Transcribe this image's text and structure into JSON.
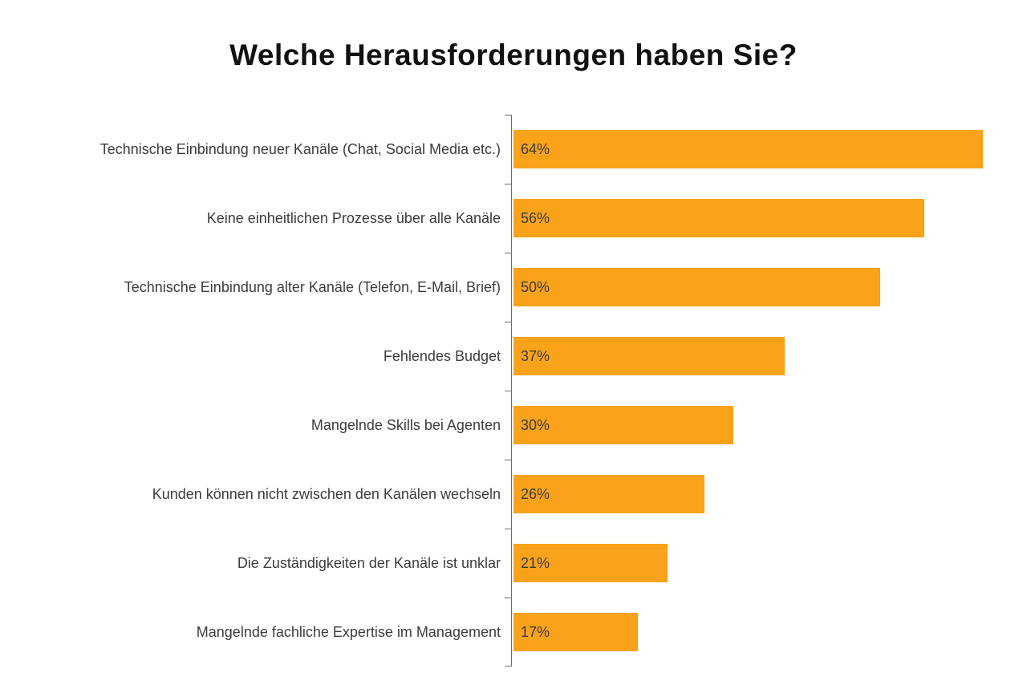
{
  "title": "Welche Herausforderungen haben Sie?",
  "chart_data": {
    "type": "bar",
    "orientation": "horizontal",
    "title": "Welche Herausforderungen haben Sie?",
    "xlabel": "",
    "ylabel": "",
    "categories": [
      "Technische Einbindung neuer Kanäle (Chat, Social Media etc.)",
      "Keine einheitlichen Prozesse über alle Kanäle",
      "Technische Einbindung alter Kanäle (Telefon, E-Mail, Brief)",
      "Fehlendes Budget",
      "Mangelnde Skills bei Agenten",
      "Kunden können nicht zwischen den Kanälen wechseln",
      "Die Zuständigkeiten der Kanäle ist unklar",
      "Mangelnde fachliche Expertise im Management"
    ],
    "values": [
      64,
      56,
      50,
      37,
      30,
      26,
      21,
      17
    ],
    "data_labels": [
      "64%",
      "56%",
      "50%",
      "37%",
      "30%",
      "26%",
      "21%",
      "17%"
    ],
    "xlim": [
      0,
      70
    ],
    "grid": false,
    "legend": false,
    "bar_color": "#F9A21A",
    "text_color": "#3C3C3B",
    "axis_color": "#6E6E6E",
    "background_color": "#FFFFFF"
  }
}
